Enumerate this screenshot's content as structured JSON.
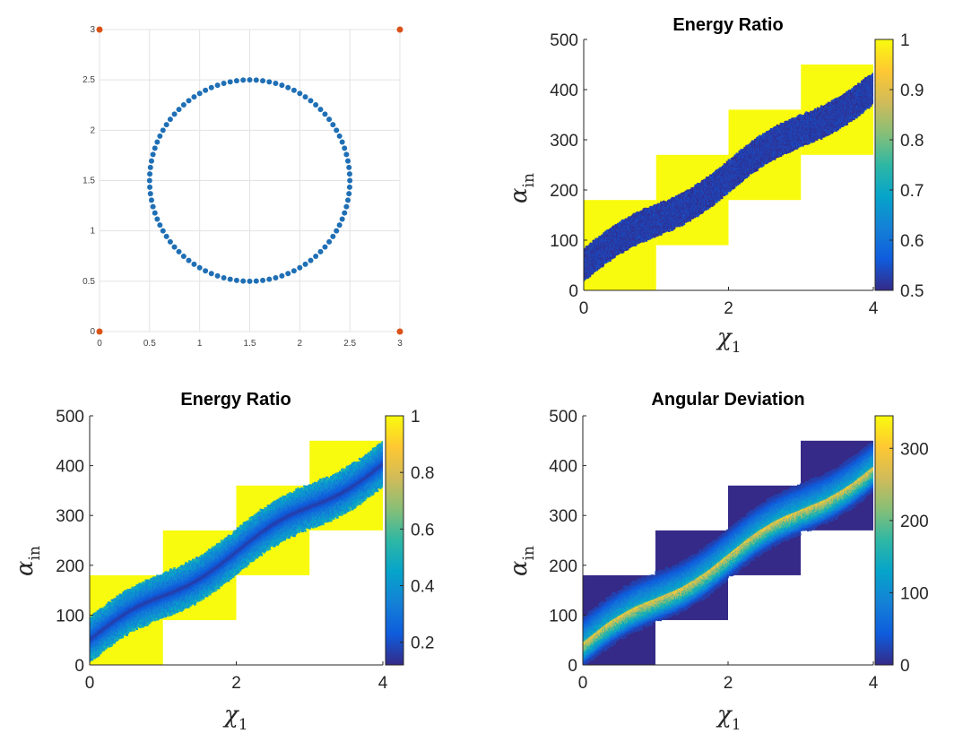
{
  "chart_data": [
    {
      "type": "scatter",
      "title": "",
      "xlabel": "",
      "ylabel": "",
      "xlim": [
        0,
        3
      ],
      "ylim": [
        0,
        3
      ],
      "grid": true,
      "xticks": [
        "0",
        "0.5",
        "1",
        "1.5",
        "2",
        "2.5",
        "3"
      ],
      "yticks": [
        "0",
        "0.5",
        "1",
        "1.5",
        "2",
        "2.5",
        "3"
      ],
      "series": [
        {
          "color": "#1f6fb5",
          "points_desc": "circle",
          "center": [
            1.5,
            1.5
          ],
          "radius": 1.0,
          "n_points": 96
        },
        {
          "color": "#d95319",
          "points": [
            [
              0,
              0
            ],
            [
              0,
              3
            ],
            [
              3,
              0
            ],
            [
              3,
              3
            ]
          ]
        }
      ]
    },
    {
      "type": "heatmap",
      "title": "Energy Ratio",
      "xlabel_main": "χ",
      "xlabel_sub": "1",
      "ylabel_main": "α",
      "ylabel_sub": "in",
      "xlim": [
        0,
        4
      ],
      "ylim": [
        0,
        500
      ],
      "xticks": [
        "0",
        "2",
        "4"
      ],
      "yticks": [
        "0",
        "100",
        "200",
        "300",
        "400",
        "500"
      ],
      "colorbar": {
        "min": 0.5,
        "max": 1,
        "ticks": [
          "0.5",
          "0.6",
          "0.7",
          "0.8",
          "0.9",
          "1"
        ]
      },
      "blocks": [
        {
          "x": [
            0,
            1
          ],
          "y": [
            0,
            180
          ]
        },
        {
          "x": [
            1,
            2
          ],
          "y": [
            90,
            270
          ]
        },
        {
          "x": [
            2,
            3
          ],
          "y": [
            180,
            360
          ]
        },
        {
          "x": [
            3,
            4
          ],
          "y": [
            270,
            450
          ]
        }
      ],
      "band": {
        "center_start": 50,
        "center_end": 405,
        "half_width": 28,
        "value_range": [
          0.5,
          0.55
        ]
      },
      "background_value": 1
    },
    {
      "type": "heatmap",
      "title": "Energy Ratio",
      "xlabel_main": "χ",
      "xlabel_sub": "1",
      "ylabel_main": "α",
      "ylabel_sub": "in",
      "xlim": [
        0,
        4
      ],
      "ylim": [
        0,
        500
      ],
      "xticks": [
        "0",
        "2",
        "4"
      ],
      "yticks": [
        "0",
        "100",
        "200",
        "300",
        "400",
        "500"
      ],
      "colorbar": {
        "min": 0.12,
        "max": 1,
        "ticks": [
          "0.2",
          "0.4",
          "0.6",
          "0.8",
          "1"
        ],
        "tick_values": [
          0.2,
          0.4,
          0.6,
          0.8,
          1
        ]
      },
      "blocks": [
        {
          "x": [
            0,
            1
          ],
          "y": [
            0,
            180
          ]
        },
        {
          "x": [
            1,
            2
          ],
          "y": [
            90,
            270
          ]
        },
        {
          "x": [
            2,
            3
          ],
          "y": [
            180,
            360
          ]
        },
        {
          "x": [
            3,
            4
          ],
          "y": [
            270,
            450
          ]
        }
      ],
      "band": {
        "center_start": 50,
        "center_end": 405,
        "half_width": 40,
        "value_range": [
          0.15,
          0.5
        ]
      },
      "background_value": 1
    },
    {
      "type": "heatmap",
      "title": "Angular Deviation",
      "xlabel_main": "χ",
      "xlabel_sub": "1",
      "ylabel_main": "α",
      "ylabel_sub": "in",
      "xlim": [
        0,
        4
      ],
      "ylim": [
        0,
        500
      ],
      "xticks": [
        "0",
        "2",
        "4"
      ],
      "yticks": [
        "0",
        "100",
        "200",
        "300",
        "400",
        "500"
      ],
      "colorbar": {
        "min": 0,
        "max": 345,
        "ticks": [
          "0",
          "100",
          "200",
          "300"
        ],
        "tick_values": [
          0,
          100,
          200,
          300
        ]
      },
      "blocks": [
        {
          "x": [
            0,
            1
          ],
          "y": [
            0,
            180
          ]
        },
        {
          "x": [
            1,
            2
          ],
          "y": [
            90,
            270
          ]
        },
        {
          "x": [
            2,
            3
          ],
          "y": [
            180,
            360
          ]
        },
        {
          "x": [
            3,
            4
          ],
          "y": [
            270,
            450
          ]
        }
      ],
      "band": {
        "center_start": 45,
        "center_end": 400,
        "half_width": 45,
        "value_range": [
          20,
          320
        ]
      },
      "background_value": 0
    }
  ],
  "colors": {
    "parula_low": "#352a87",
    "parula_high": "#f9fb0e",
    "circle_blue": "#1f6fb5",
    "corner_orange": "#d95319"
  }
}
